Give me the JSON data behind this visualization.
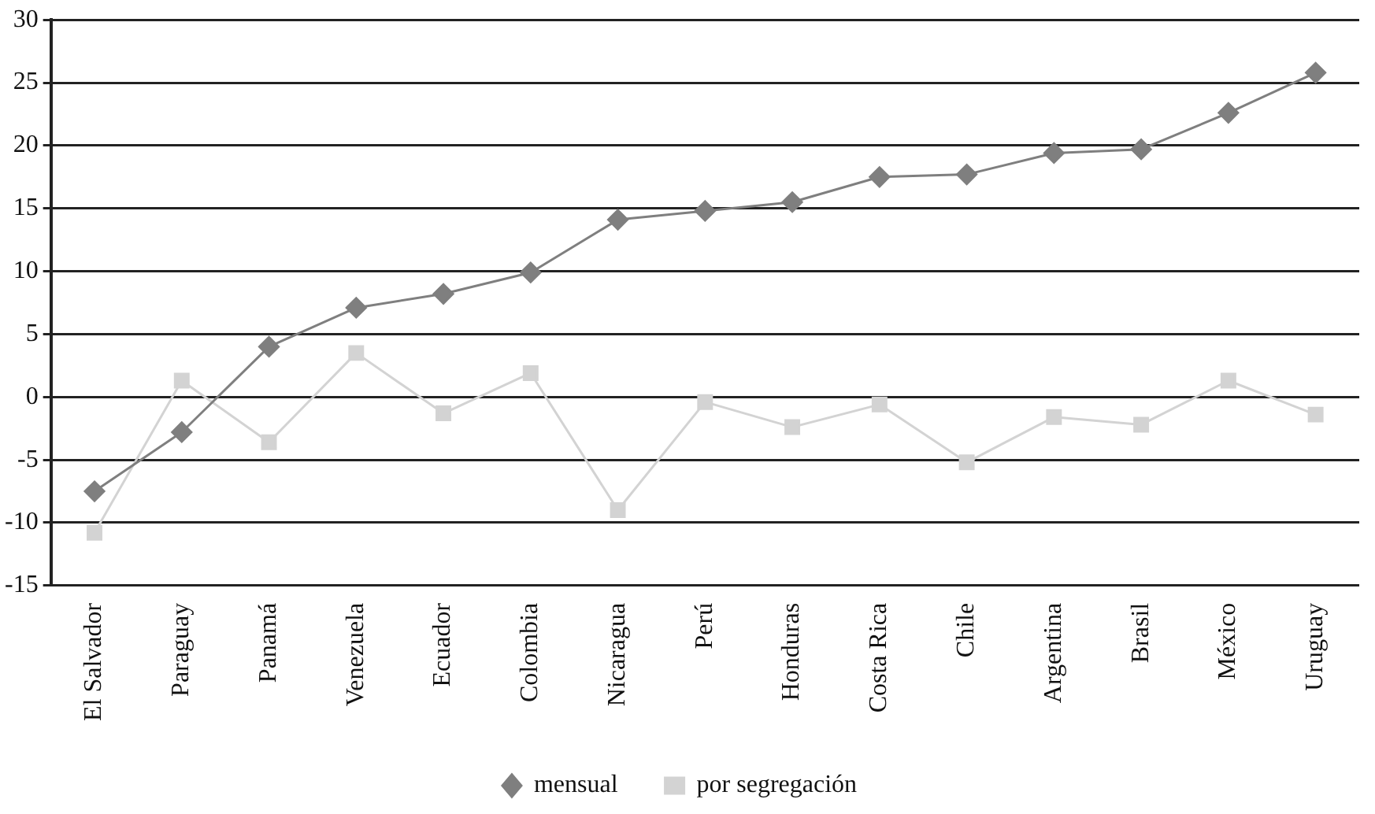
{
  "chart_data": {
    "type": "line",
    "categories": [
      "El Salvador",
      "Paraguay",
      "Panamá",
      "Venezuela",
      "Ecuador",
      "Colombia",
      "Nicaragua",
      "Perú",
      "Honduras",
      "Costa Rica",
      "Chile",
      "Argentina",
      "Brasil",
      "México",
      "Uruguay"
    ],
    "series": [
      {
        "name": "mensual",
        "color": "#7f7f7f",
        "marker": "diamond",
        "values": [
          -7.5,
          -2.8,
          4,
          7.1,
          8.2,
          9.9,
          14.1,
          14.8,
          15.5,
          17.5,
          17.7,
          19.4,
          19.7,
          22.6,
          25.8
        ]
      },
      {
        "name": "por segregación",
        "color": "#d3d3d3",
        "marker": "square",
        "values": [
          -10.8,
          1.3,
          -3.6,
          3.5,
          -1.3,
          1.9,
          -9,
          -0.4,
          -2.4,
          -0.6,
          -5.2,
          -1.6,
          -2.2,
          1.3,
          -1.4
        ]
      }
    ],
    "ylim": [
      -15,
      30
    ],
    "yticks": [
      -15,
      -10,
      -5,
      0,
      5,
      10,
      15,
      20,
      25,
      30
    ],
    "grid": "y",
    "legend": "bottom"
  }
}
